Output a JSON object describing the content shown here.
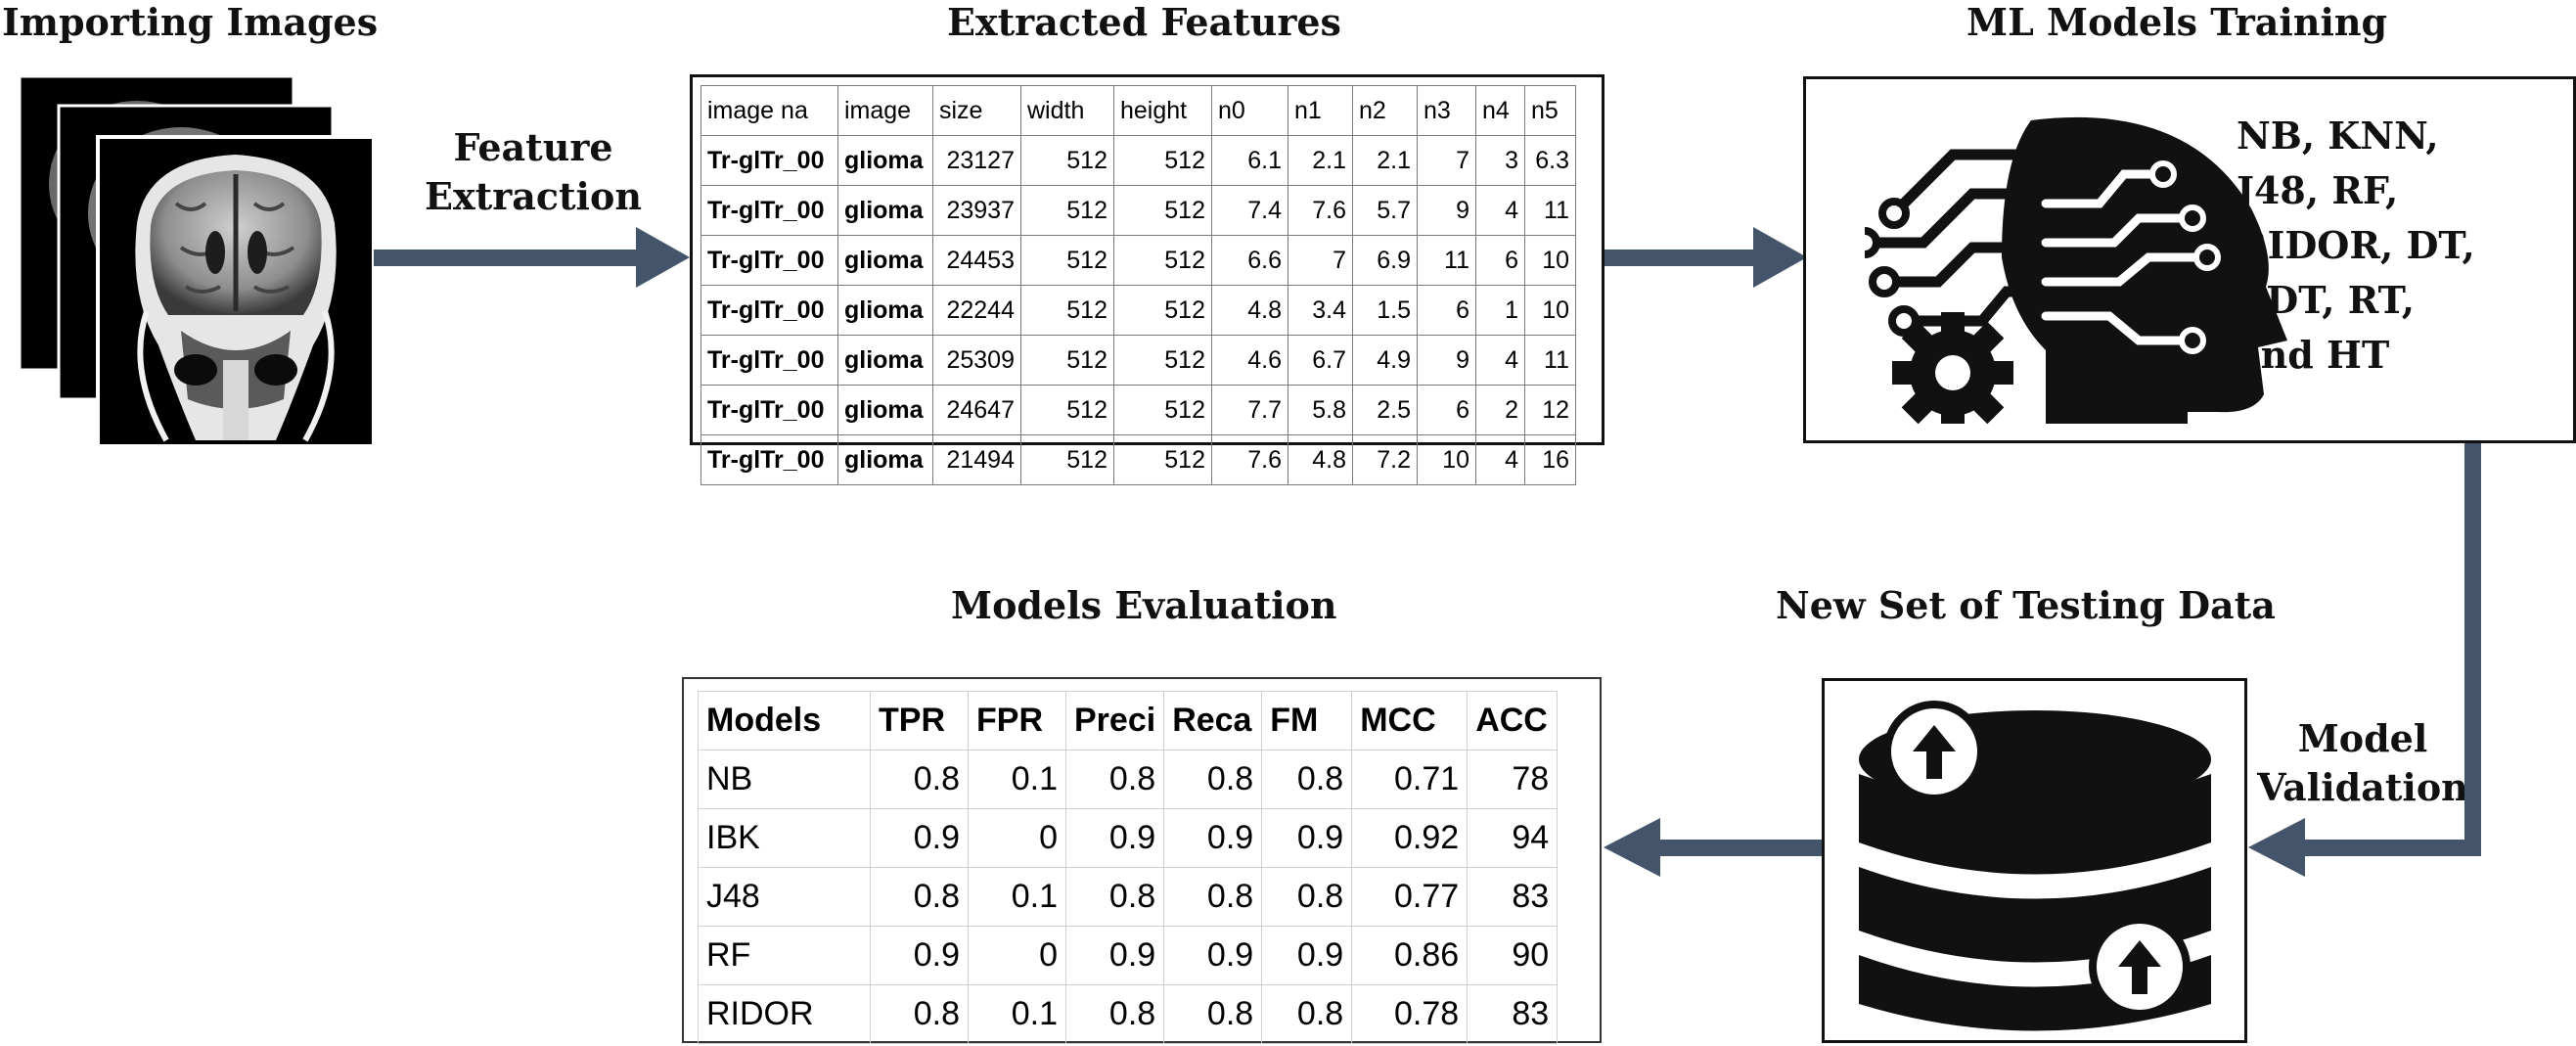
{
  "titles": {
    "importing_images": "Importing Images",
    "extracted_features": "Extracted Features",
    "ml_models_training": "ML Models Training",
    "models_evaluation": "Models Evaluation",
    "new_testing_data": "New Set of Testing Data"
  },
  "arrow_labels": {
    "feature_extraction_line1": "Feature",
    "feature_extraction_line2": "Extraction",
    "model_validation_line1": "Model",
    "model_validation_line2": "Validation"
  },
  "models_text": [
    "NB, KNN,",
    "J48, RF,",
    "RIDOR, DT,",
    "CDT, RT,",
    "and HT"
  ],
  "features_table": {
    "headers": [
      "image na",
      "image",
      "size",
      "width",
      "height",
      "n0",
      "n1",
      "n2",
      "n3",
      "n4",
      "n5"
    ],
    "rows": [
      [
        "Tr-glTr_00",
        "glioma",
        "23127",
        "512",
        "512",
        "6.1",
        "2.1",
        "2.1",
        "7",
        "3",
        "6.3"
      ],
      [
        "Tr-glTr_00",
        "glioma",
        "23937",
        "512",
        "512",
        "7.4",
        "7.6",
        "5.7",
        "9",
        "4",
        "11"
      ],
      [
        "Tr-glTr_00",
        "glioma",
        "24453",
        "512",
        "512",
        "6.6",
        "7",
        "6.9",
        "11",
        "6",
        "10"
      ],
      [
        "Tr-glTr_00",
        "glioma",
        "22244",
        "512",
        "512",
        "4.8",
        "3.4",
        "1.5",
        "6",
        "1",
        "10"
      ],
      [
        "Tr-glTr_00",
        "glioma",
        "25309",
        "512",
        "512",
        "4.6",
        "6.7",
        "4.9",
        "9",
        "4",
        "11"
      ],
      [
        "Tr-glTr_00",
        "glioma",
        "24647",
        "512",
        "512",
        "7.7",
        "5.8",
        "2.5",
        "6",
        "2",
        "12"
      ],
      [
        "Tr-glTr_00",
        "glioma",
        "21494",
        "512",
        "512",
        "7.6",
        "4.8",
        "7.2",
        "10",
        "4",
        "16"
      ]
    ]
  },
  "evaluation_table": {
    "headers": [
      "Models",
      "TPR",
      "FPR",
      "Preci",
      "Reca",
      "FM",
      "MCC",
      "ACC"
    ],
    "rows": [
      [
        "NB",
        "0.8",
        "0.1",
        "0.8",
        "0.8",
        "0.8",
        "0.71",
        "78"
      ],
      [
        "IBK",
        "0.9",
        "0",
        "0.9",
        "0.9",
        "0.9",
        "0.92",
        "94"
      ],
      [
        "J48",
        "0.8",
        "0.1",
        "0.8",
        "0.8",
        "0.8",
        "0.77",
        "83"
      ],
      [
        "RF",
        "0.9",
        "0",
        "0.9",
        "0.9",
        "0.9",
        "0.86",
        "90"
      ],
      [
        "RIDOR",
        "0.8",
        "0.1",
        "0.8",
        "0.8",
        "0.8",
        "0.78",
        "83"
      ]
    ]
  },
  "icons": {
    "mri": "brain-mri-scan-icon",
    "ai": "ai-head-circuit-icon",
    "gear": "gear-icon",
    "database": "database-upload-icon"
  },
  "colors": {
    "arrow": "#44546a",
    "text": "#111111"
  }
}
